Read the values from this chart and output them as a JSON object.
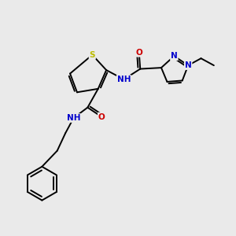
{
  "bg_color": "#EAEAEA",
  "bond_color": "#000000",
  "bond_width": 1.4,
  "atom_colors": {
    "S": "#BBBB00",
    "N": "#0000CC",
    "O": "#CC0000",
    "H": "#557755"
  },
  "font_size": 7.5
}
